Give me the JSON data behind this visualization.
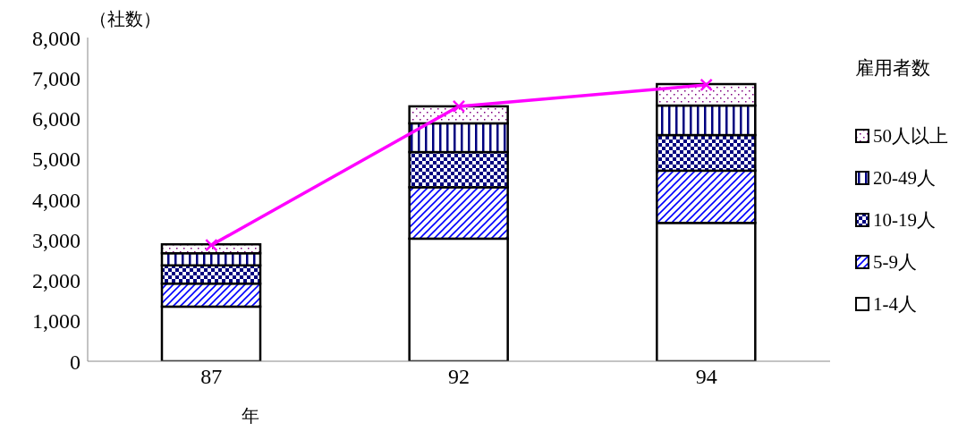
{
  "chart_data": {
    "type": "bar",
    "stacked": true,
    "ylabel": "（社数）",
    "xlabel": "年",
    "legend_title": "雇用者数",
    "categories": [
      "87",
      "92",
      "94"
    ],
    "ylim": [
      0,
      8000
    ],
    "yticks": [
      {
        "value": 0,
        "label": "0"
      },
      {
        "value": 1000,
        "label": "1,000"
      },
      {
        "value": 2000,
        "label": "2,000"
      },
      {
        "value": 3000,
        "label": "3,000"
      },
      {
        "value": 4000,
        "label": "4,000"
      },
      {
        "value": 5000,
        "label": "5,000"
      },
      {
        "value": 6000,
        "label": "6,000"
      },
      {
        "value": 7000,
        "label": "7,000"
      },
      {
        "value": 8000,
        "label": "8,000"
      }
    ],
    "legend": "right",
    "grid": false,
    "series": [
      {
        "name": "1-4人",
        "color": "#ffffff",
        "values": [
          1350,
          3030,
          3420
        ]
      },
      {
        "name": "5-9人",
        "color": "#0000ff",
        "values": [
          570,
          1270,
          1290
        ]
      },
      {
        "name": "10-19人",
        "color": "#000080",
        "values": [
          450,
          870,
          880
        ]
      },
      {
        "name": "20-49人",
        "color": "#000080",
        "values": [
          300,
          710,
          730
        ]
      },
      {
        "name": "50人以上",
        "color": "#800080",
        "values": [
          220,
          420,
          530
        ]
      },
      {
        "type": "line",
        "color": "#ff00ff",
        "marker": "cross",
        "values": [
          2870,
          6300,
          6830
        ]
      }
    ]
  }
}
